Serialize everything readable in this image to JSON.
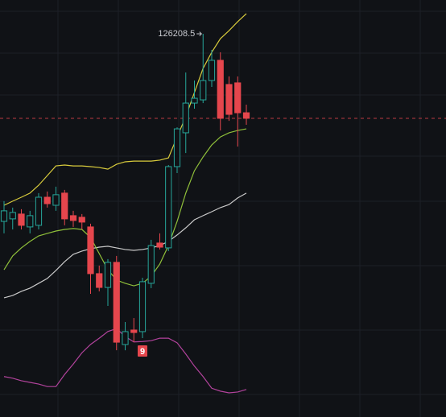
{
  "chart_data": {
    "type": "candlestick",
    "ylim": [
      104800,
      128100
    ],
    "y2lim": [
      0,
      100
    ],
    "up_color": "#26a69a",
    "down_color": "#e5464d",
    "open": [
      115730,
      115870,
      116140,
      115420,
      115510,
      117080,
      116630,
      117310,
      116050,
      115960,
      115420,
      112810,
      112040,
      113440,
      108850,
      109660,
      109570,
      112270,
      114520,
      114250,
      118790,
      120680,
      122340,
      122520,
      123600,
      124730,
      123380,
      123470,
      121800
    ],
    "close": [
      116320,
      116230,
      115510,
      116050,
      117080,
      116720,
      117220,
      115870,
      115780,
      115690,
      112810,
      112040,
      113440,
      108980,
      109570,
      109520,
      112360,
      114380,
      114290,
      118790,
      120900,
      122340,
      122610,
      123600,
      124730,
      121490,
      121710,
      121800,
      121490
    ],
    "high": [
      116860,
      116500,
      116410,
      116320,
      117310,
      117400,
      117670,
      117490,
      116320,
      116140,
      115600,
      113260,
      113620,
      113800,
      110110,
      110330,
      112580,
      114700,
      115060,
      118880,
      120990,
      124050,
      123600,
      126208.5,
      125310,
      125180,
      123830,
      123830,
      122250
    ],
    "low": [
      115060,
      115280,
      115280,
      115060,
      115280,
      116500,
      116320,
      115510,
      115420,
      115280,
      111680,
      111820,
      111010,
      108530,
      108530,
      108980,
      109210,
      112000,
      114160,
      114070,
      118430,
      119550,
      122030,
      122340,
      123240,
      120810,
      121350,
      119910,
      121130
    ],
    "lines": [
      {
        "color": "#d8cb3c",
        "values": [
          116630,
          116860,
          117080,
          117310,
          117750,
          118290,
          118830,
          118880,
          118830,
          118830,
          118790,
          118740,
          118650,
          118920,
          119060,
          119100,
          119100,
          119100,
          119150,
          119280,
          120450,
          121580,
          122930,
          124280,
          125180,
          125940,
          126390,
          126890,
          127340
        ]
      },
      {
        "color": "#c9c9c9",
        "values": [
          111460,
          111590,
          111820,
          112000,
          112270,
          112540,
          112990,
          113480,
          113890,
          114070,
          114200,
          114290,
          114340,
          114250,
          114160,
          114110,
          114160,
          114250,
          114380,
          114610,
          114970,
          115370,
          115820,
          116050,
          116270,
          116500,
          116670,
          117040,
          117310
        ]
      },
      {
        "color": "#8fbf3a",
        "values": [
          113030,
          113800,
          114250,
          114610,
          114920,
          115060,
          115190,
          115280,
          115330,
          115280,
          114830,
          113930,
          113030,
          112450,
          112270,
          112130,
          112270,
          112670,
          113350,
          114380,
          115730,
          117310,
          118560,
          119330,
          120000,
          120450,
          120680,
          120810,
          120900
        ]
      },
      {
        "color": "#b2439c",
        "axis": "y2",
        "values": [
          9.7,
          9.3,
          8.7,
          8.3,
          7.9,
          7.3,
          7.3,
          10.2,
          12.7,
          15.4,
          17.4,
          18.9,
          20.5,
          21.2,
          19.3,
          18.0,
          18.1,
          18.3,
          18.9,
          18.9,
          17.8,
          15.1,
          12.2,
          9.7,
          6.9,
          6.2,
          5.8,
          6.0,
          6.6
        ]
      }
    ],
    "sequence_count": 9
  }
}
